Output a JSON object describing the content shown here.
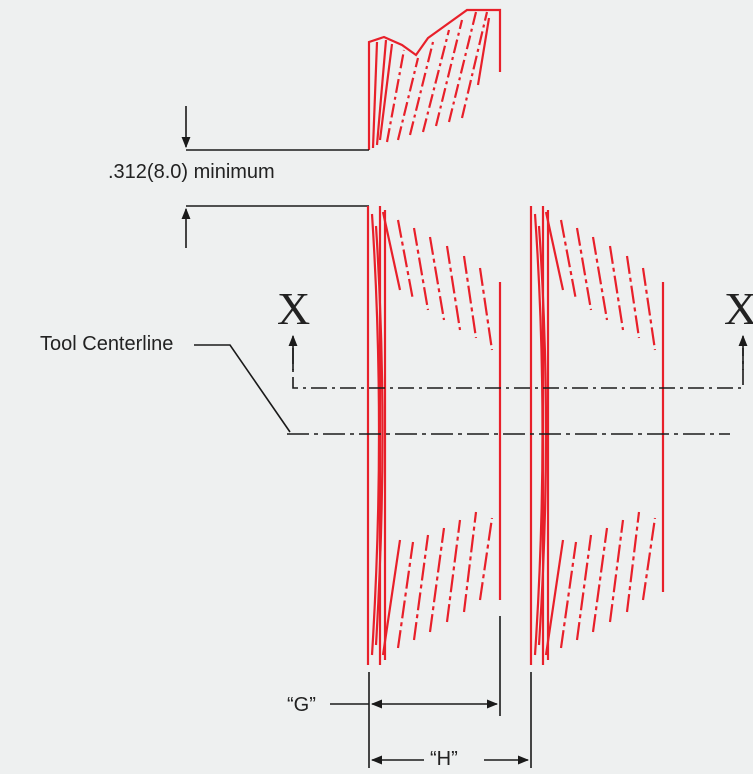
{
  "dimension_label": ".312(8.0) minimum",
  "centerline_label": "Tool Centerline",
  "section_mark_left": "X",
  "section_mark_right": "X",
  "dim_g_label": "“G”",
  "dim_h_label": "“H”",
  "colors": {
    "profile": "#e8202a",
    "linework": "#1a1a1a",
    "background": "#eef0f0"
  }
}
